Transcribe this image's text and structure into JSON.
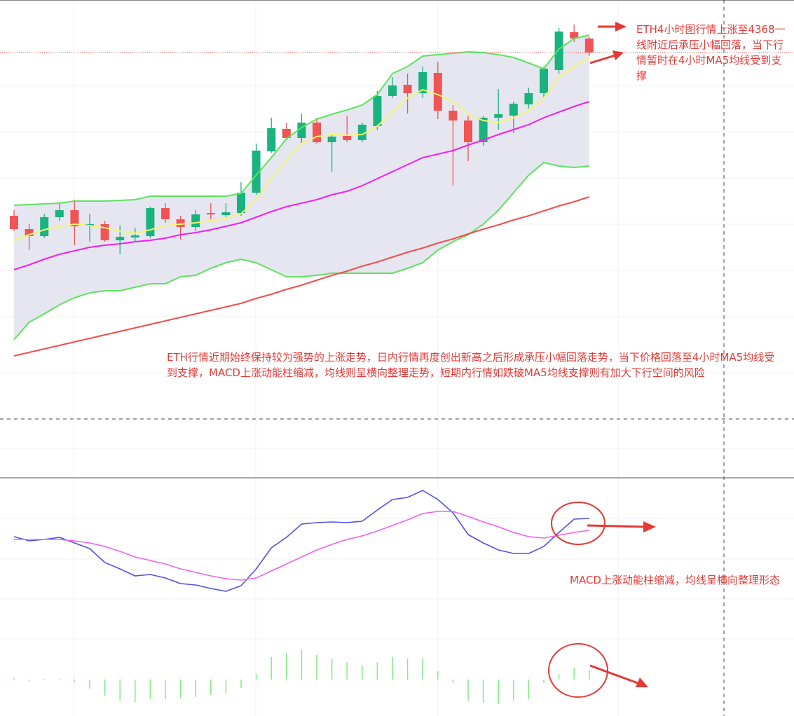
{
  "chart_data": [
    {
      "type": "candlestick",
      "open": [
        4092,
        4073,
        4063,
        4090,
        4100,
        4077,
        4080,
        4057,
        4061,
        4063,
        4103,
        4087,
        4076,
        4096,
        4093,
        4096,
        4125,
        4184,
        4216,
        4203,
        4225,
        4197,
        4206,
        4200,
        4220,
        4263,
        4279,
        4267,
        4296,
        4242,
        4228,
        4197,
        4232,
        4235,
        4251,
        4267,
        4300,
        4354,
        4345
      ],
      "high": [
        4100,
        4080,
        4095,
        4110,
        4115,
        4095,
        4085,
        4078,
        4075,
        4105,
        4110,
        4092,
        4100,
        4110,
        4110,
        4140,
        4195,
        4232,
        4225,
        4238,
        4232,
        4208,
        4235,
        4225,
        4270,
        4290,
        4295,
        4305,
        4312,
        4250,
        4235,
        4235,
        4273,
        4255,
        4275,
        4305,
        4360,
        4365,
        4348
      ],
      "low": [
        4070,
        4043,
        4060,
        4085,
        4050,
        4055,
        4055,
        4037,
        4055,
        4060,
        4082,
        4058,
        4070,
        4087,
        4090,
        4092,
        4122,
        4182,
        4200,
        4195,
        4195,
        4155,
        4197,
        4197,
        4215,
        4260,
        4238,
        4260,
        4230,
        4135,
        4170,
        4192,
        4215,
        4210,
        4245,
        4260,
        4295,
        4340,
        4320
      ],
      "close": [
        4073,
        4063,
        4090,
        4100,
        4077,
        4080,
        4057,
        4062,
        4064,
        4103,
        4087,
        4076,
        4094,
        4094,
        4097,
        4125,
        4185,
        4217,
        4203,
        4225,
        4197,
        4205,
        4200,
        4222,
        4263,
        4278,
        4267,
        4297,
        4242,
        4228,
        4197,
        4232,
        4237,
        4252,
        4267,
        4302,
        4355,
        4345,
        4325
      ],
      "up_color": "#18b37e",
      "down_color": "#f05454",
      "series": [
        {
          "color": "#5de35d",
          "values": [
            4107,
            4108,
            4109,
            4110,
            4113,
            4113,
            4113,
            4114,
            4115,
            4120,
            4120,
            4120,
            4120,
            4120,
            4120,
            4124,
            4150,
            4175,
            4202,
            4218,
            4230,
            4237,
            4243,
            4250,
            4265,
            4295,
            4305,
            4320,
            4322,
            4324,
            4326,
            4325,
            4322,
            4318,
            4310,
            4302,
            4330,
            4345,
            4350
          ]
        },
        {
          "color": "#5de35d",
          "values": [
            3915,
            3940,
            3952,
            3965,
            3975,
            3982,
            3985,
            3985,
            3990,
            3995,
            3995,
            4005,
            4007,
            4017,
            4025,
            4030,
            4025,
            4015,
            4005,
            4005,
            4007,
            4010,
            4010,
            4010,
            4010,
            4010,
            4017,
            4025,
            4043,
            4055,
            4065,
            4080,
            4100,
            4125,
            4150,
            4168,
            4163,
            4161,
            4163
          ]
        },
        {
          "color": "#f5f571",
          "values": [
            4057,
            4065,
            4072,
            4077,
            4080,
            4078,
            4075,
            4070,
            4067,
            4072,
            4078,
            4080,
            4082,
            4085,
            4088,
            4095,
            4115,
            4145,
            4172,
            4195,
            4205,
            4208,
            4207,
            4208,
            4220,
            4240,
            4260,
            4272,
            4265,
            4255,
            4237,
            4228,
            4225,
            4232,
            4242,
            4260,
            4290,
            4305,
            4318
          ]
        },
        {
          "color": "#f020f0",
          "values": [
            4015,
            4022,
            4030,
            4037,
            4042,
            4047,
            4050,
            4052,
            4055,
            4057,
            4060,
            4065,
            4068,
            4072,
            4077,
            4082,
            4090,
            4098,
            4105,
            4110,
            4115,
            4122,
            4127,
            4135,
            4145,
            4155,
            4165,
            4175,
            4180,
            4185,
            4193,
            4200,
            4208,
            4215,
            4222,
            4232,
            4240,
            4248,
            4255
          ]
        },
        {
          "color": "#f04e4e",
          "values": [
            3892,
            3897,
            3902,
            3907,
            3912,
            3917,
            3922,
            3927,
            3932,
            3937,
            3942,
            3947,
            3952,
            3957,
            3962,
            3967,
            3974,
            3980,
            3987,
            3993,
            4000,
            4007,
            4013,
            4020,
            4026,
            4033,
            4040,
            4046,
            4053,
            4059,
            4066,
            4073,
            4079,
            4086,
            4092,
            4099,
            4106,
            4112,
            4119
          ]
        }
      ],
      "band_fill": "#e6e6f0",
      "ylim": [
        3720,
        4400
      ],
      "annotations": [
        "ETH4小时图行情上涨至4368一线附近后承压小幅回落，当下行情暂时在4小时MA5均线受到支撑",
        "ETH行情近期始终保持较为强势的上涨走势，日内行情再度创出新高之后形成承压小幅回落走势，当下价格回落至4小时MA5均线受到支撑，MACD上涨动能柱缩减，均线则呈横向整理走势，短期内行情如跌破MA5均线支撑则有加大下行空间的风险"
      ]
    },
    {
      "type": "macd",
      "series": [
        {
          "color": "#5050e8",
          "values": [
            86,
            80,
            82,
            85,
            77,
            69,
            49,
            40,
            30,
            32,
            27,
            19,
            17,
            12,
            8,
            16,
            40,
            70,
            85,
            104,
            106,
            107,
            106,
            108,
            124,
            139,
            142,
            152,
            139,
            120,
            89,
            77,
            67,
            62,
            62,
            72,
            92,
            111,
            112
          ]
        },
        {
          "color": "#f060f0",
          "values": [
            82,
            82,
            82,
            82,
            80,
            77,
            72,
            65,
            57,
            52,
            47,
            40,
            35,
            30,
            26,
            24,
            27,
            37,
            47,
            57,
            67,
            75,
            82,
            87,
            94,
            102,
            110,
            119,
            122,
            122,
            115,
            107,
            100,
            92,
            86,
            84,
            88,
            92,
            95
          ]
        }
      ],
      "histogram": {
        "color": "#7cef7c",
        "axis": "y2",
        "values": [
          2,
          -2,
          0,
          0,
          -3,
          -13,
          -23,
          -30,
          -32,
          -28,
          -28,
          -27,
          -25,
          -22,
          -20,
          -12,
          8,
          32,
          38,
          43,
          35,
          30,
          25,
          20,
          25,
          32,
          30,
          30,
          12,
          -5,
          -30,
          -33,
          -35,
          -30,
          -28,
          -5,
          8,
          17,
          13
        ]
      },
      "ylim": [
        -170,
        170
      ],
      "y2lim": [
        -52,
        288
      ],
      "annotations": [
        "MACD上涨动能柱缩减，均线呈横向整理形态"
      ]
    }
  ]
}
